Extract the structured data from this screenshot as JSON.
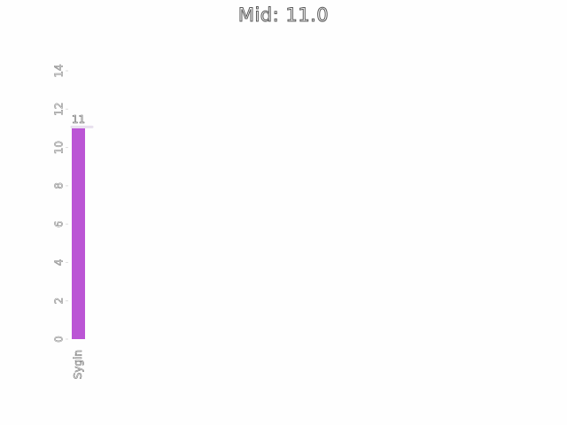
{
  "chart_data": {
    "type": "bar",
    "title": "Mid: 11.0",
    "categories": [
      "Sygin"
    ],
    "values": [
      11
    ],
    "data_labels": [
      "11"
    ],
    "xlabel": "",
    "ylabel": "",
    "ylim": [
      0,
      14
    ],
    "yticks": [
      0,
      2,
      4,
      6,
      8,
      10,
      12,
      14
    ],
    "grid": false,
    "bar_color": "#bb55d5"
  }
}
